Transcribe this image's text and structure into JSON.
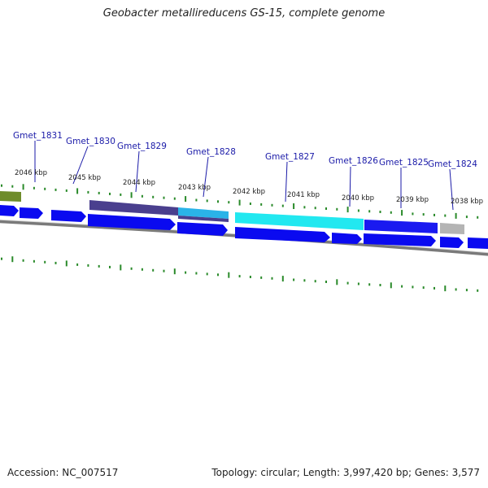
{
  "title": "Geobacter metallireducens GS-15, complete genome",
  "footer": {
    "accession": "Accession: NC_007517",
    "topology": "Topology: circular; Length: 3,997,420 bp; Genes: 3,577"
  },
  "gene_labels": [
    "Gmet_1831",
    "Gmet_1830",
    "Gmet_1829",
    "Gmet_1828",
    "Gmet_1827",
    "Gmet_1826",
    "Gmet_1825",
    "Gmet_1824"
  ],
  "kbp_labels": [
    "2046 kbp",
    "2045 kbp",
    "2044 kbp",
    "2043 kbp",
    "2042 kbp",
    "2041 kbp",
    "2040 kbp",
    "2039 kbp",
    "2038 kbp"
  ],
  "colors": {
    "label": "#1a1aa8",
    "tick": "#2a8a2a",
    "cds": "#0a0af0",
    "backbone": "#8a8a8a",
    "feature_olive": "#6e8c2a",
    "feature_indigo": "#4a3f8e",
    "feature_sky": "#2ab3e8",
    "feature_cyan": "#22e8f0",
    "feature_gray": "#b4b4b4"
  }
}
